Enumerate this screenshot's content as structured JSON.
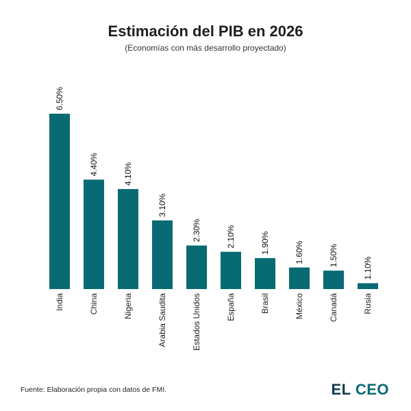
{
  "title": "Estimación del PIB en 2026",
  "subtitle": "(Economías con más desarrollo proyectado)",
  "source": "Fuente: Elaboración propia con datos de FMI.",
  "logo": {
    "part1": "EL",
    "part2": "CEO"
  },
  "colors": {
    "bar": "#086a72",
    "logo_dark": "#0d3b4c",
    "logo_teal": "#0a6a73"
  },
  "chart_data": {
    "type": "bar",
    "title": "Estimación del PIB en 2026",
    "subtitle": "(Economías con más desarrollo proyectado)",
    "categories": [
      "India",
      "China",
      "Nigeria",
      "Arabia Saudita",
      "Estados Unidos",
      "España",
      "Brasil",
      "México",
      "Canadá",
      "Rusia"
    ],
    "values": [
      6.5,
      4.4,
      4.1,
      3.1,
      2.3,
      2.1,
      1.9,
      1.6,
      1.5,
      1.1
    ],
    "value_labels": [
      "6.50%",
      "4.40%",
      "4.10%",
      "3.10%",
      "2.30%",
      "2.10%",
      "1.90%",
      "1.60%",
      "1.50%",
      "1.10%"
    ],
    "xlabel": "",
    "ylabel": "",
    "ylim": [
      1.0,
      6.5
    ],
    "grid": false,
    "legend": "none"
  }
}
